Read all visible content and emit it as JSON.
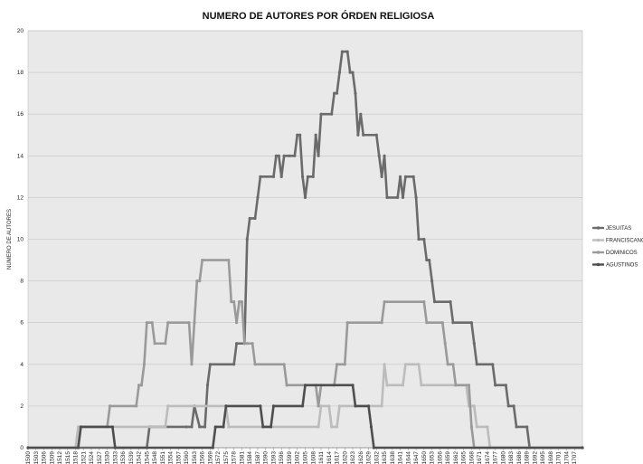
{
  "chart_data": {
    "type": "line",
    "title": "NUMERO DE AUTORES POR ÓRDEN RELIGIOSA",
    "xlabel": "",
    "ylabel": "NUMERO DE AUTORES",
    "ylim": [
      0,
      20
    ],
    "y_ticks": [
      0,
      2,
      4,
      6,
      8,
      10,
      12,
      14,
      16,
      18,
      20
    ],
    "x_range": [
      1500,
      1710
    ],
    "x_step": 3,
    "x_tick_labels": [
      "1500",
      "1503",
      "1506",
      "1509",
      "1512",
      "1515",
      "1518",
      "1521",
      "1524",
      "1527",
      "1530",
      "1533",
      "1536",
      "1539",
      "1542",
      "1545",
      "1548",
      "1551",
      "1554",
      "1557",
      "1560",
      "1563",
      "1566",
      "1569",
      "1572",
      "1575",
      "1578",
      "1581",
      "1584",
      "1587",
      "1590",
      "1593",
      "1596",
      "1599",
      "1602",
      "1605",
      "1608",
      "1611",
      "1614",
      "1617",
      "1620",
      "1623",
      "1626",
      "1629",
      "1632",
      "1635",
      "1638",
      "1641",
      "1644",
      "1647",
      "1650",
      "1653",
      "1656",
      "1659",
      "1662",
      "1665",
      "1668",
      "1671",
      "1674",
      "1677",
      "1680",
      "1683",
      "1686",
      "1689",
      "1692",
      "1695",
      "1698",
      "1701",
      "1704",
      "1707"
    ],
    "grid": true,
    "legend_position": "right",
    "background": "#e9e9e9",
    "series": [
      {
        "name": "JESUITAS",
        "color": "#6b6b6b",
        "points": [
          [
            1500,
            0
          ],
          [
            1545,
            0
          ],
          [
            1546,
            1
          ],
          [
            1560,
            1
          ],
          [
            1562,
            1
          ],
          [
            1563,
            2
          ],
          [
            1565,
            1
          ],
          [
            1567,
            1
          ],
          [
            1568,
            3
          ],
          [
            1569,
            4
          ],
          [
            1578,
            4
          ],
          [
            1579,
            5
          ],
          [
            1582,
            5
          ],
          [
            1583,
            10
          ],
          [
            1584,
            11
          ],
          [
            1586,
            11
          ],
          [
            1587,
            12
          ],
          [
            1588,
            13
          ],
          [
            1593,
            13
          ],
          [
            1594,
            14
          ],
          [
            1595,
            14
          ],
          [
            1596,
            13
          ],
          [
            1597,
            14
          ],
          [
            1599,
            14
          ],
          [
            1601,
            14
          ],
          [
            1602,
            15
          ],
          [
            1603,
            15
          ],
          [
            1604,
            13
          ],
          [
            1605,
            12
          ],
          [
            1606,
            13
          ],
          [
            1608,
            13
          ],
          [
            1609,
            15
          ],
          [
            1610,
            14
          ],
          [
            1611,
            16
          ],
          [
            1615,
            16
          ],
          [
            1616,
            17
          ],
          [
            1617,
            17
          ],
          [
            1618,
            18
          ],
          [
            1619,
            19
          ],
          [
            1621,
            19
          ],
          [
            1622,
            18
          ],
          [
            1623,
            18
          ],
          [
            1624,
            17
          ],
          [
            1625,
            15
          ],
          [
            1626,
            16
          ],
          [
            1627,
            15
          ],
          [
            1632,
            15
          ],
          [
            1633,
            14
          ],
          [
            1634,
            13
          ],
          [
            1635,
            14
          ],
          [
            1636,
            12
          ],
          [
            1640,
            12
          ],
          [
            1641,
            13
          ],
          [
            1642,
            12
          ],
          [
            1643,
            13
          ],
          [
            1646,
            13
          ],
          [
            1647,
            12
          ],
          [
            1648,
            10
          ],
          [
            1650,
            10
          ],
          [
            1651,
            9
          ],
          [
            1652,
            9
          ],
          [
            1653,
            8
          ],
          [
            1654,
            7
          ],
          [
            1660,
            7
          ],
          [
            1661,
            6
          ],
          [
            1668,
            6
          ],
          [
            1669,
            5
          ],
          [
            1670,
            4
          ],
          [
            1676,
            4
          ],
          [
            1677,
            3
          ],
          [
            1681,
            3
          ],
          [
            1682,
            2
          ],
          [
            1684,
            2
          ],
          [
            1685,
            1
          ],
          [
            1689,
            1
          ],
          [
            1690,
            0
          ],
          [
            1710,
            0
          ]
        ]
      },
      {
        "name": "FRANCISCANOS",
        "color": "#bcbcbc",
        "points": [
          [
            1500,
            0
          ],
          [
            1518,
            0
          ],
          [
            1519,
            1
          ],
          [
            1552,
            1
          ],
          [
            1553,
            2
          ],
          [
            1575,
            2
          ],
          [
            1576,
            1
          ],
          [
            1610,
            1
          ],
          [
            1611,
            2
          ],
          [
            1614,
            2
          ],
          [
            1615,
            1
          ],
          [
            1617,
            1
          ],
          [
            1618,
            2
          ],
          [
            1634,
            2
          ],
          [
            1635,
            4
          ],
          [
            1636,
            3
          ],
          [
            1642,
            3
          ],
          [
            1643,
            4
          ],
          [
            1648,
            4
          ],
          [
            1649,
            3
          ],
          [
            1666,
            3
          ],
          [
            1667,
            2
          ],
          [
            1669,
            2
          ],
          [
            1670,
            1
          ],
          [
            1674,
            1
          ],
          [
            1675,
            0
          ],
          [
            1710,
            0
          ]
        ]
      },
      {
        "name": "DOMINICOS",
        "color": "#9a9a9a",
        "points": [
          [
            1500,
            0
          ],
          [
            1519,
            0
          ],
          [
            1520,
            1
          ],
          [
            1530,
            1
          ],
          [
            1531,
            2
          ],
          [
            1541,
            2
          ],
          [
            1542,
            3
          ],
          [
            1543,
            3
          ],
          [
            1544,
            4
          ],
          [
            1545,
            6
          ],
          [
            1547,
            6
          ],
          [
            1548,
            5
          ],
          [
            1552,
            5
          ],
          [
            1553,
            6
          ],
          [
            1561,
            6
          ],
          [
            1562,
            4
          ],
          [
            1563,
            6
          ],
          [
            1564,
            8
          ],
          [
            1565,
            8
          ],
          [
            1566,
            9
          ],
          [
            1576,
            9
          ],
          [
            1577,
            7
          ],
          [
            1578,
            7
          ],
          [
            1579,
            6
          ],
          [
            1580,
            7
          ],
          [
            1581,
            7
          ],
          [
            1582,
            5
          ],
          [
            1583,
            5
          ],
          [
            1585,
            5
          ],
          [
            1586,
            4
          ],
          [
            1597,
            4
          ],
          [
            1598,
            3
          ],
          [
            1609,
            3
          ],
          [
            1610,
            2
          ],
          [
            1611,
            3
          ],
          [
            1616,
            3
          ],
          [
            1617,
            4
          ],
          [
            1620,
            4
          ],
          [
            1621,
            6
          ],
          [
            1634,
            6
          ],
          [
            1635,
            7
          ],
          [
            1650,
            7
          ],
          [
            1651,
            6
          ],
          [
            1657,
            6
          ],
          [
            1658,
            5
          ],
          [
            1659,
            4
          ],
          [
            1661,
            4
          ],
          [
            1662,
            3
          ],
          [
            1667,
            3
          ],
          [
            1668,
            1
          ],
          [
            1669,
            0
          ],
          [
            1710,
            0
          ]
        ]
      },
      {
        "name": "AGUSTINOS",
        "color": "#4e4e4e",
        "points": [
          [
            1500,
            0
          ],
          [
            1519,
            0
          ],
          [
            1520,
            1
          ],
          [
            1532,
            1
          ],
          [
            1533,
            0
          ],
          [
            1570,
            0
          ],
          [
            1571,
            1
          ],
          [
            1574,
            1
          ],
          [
            1575,
            2
          ],
          [
            1588,
            2
          ],
          [
            1589,
            1
          ],
          [
            1592,
            1
          ],
          [
            1593,
            2
          ],
          [
            1604,
            2
          ],
          [
            1605,
            3
          ],
          [
            1623,
            3
          ],
          [
            1624,
            2
          ],
          [
            1629,
            2
          ],
          [
            1630,
            1
          ],
          [
            1631,
            0
          ],
          [
            1710,
            0
          ]
        ]
      }
    ]
  }
}
